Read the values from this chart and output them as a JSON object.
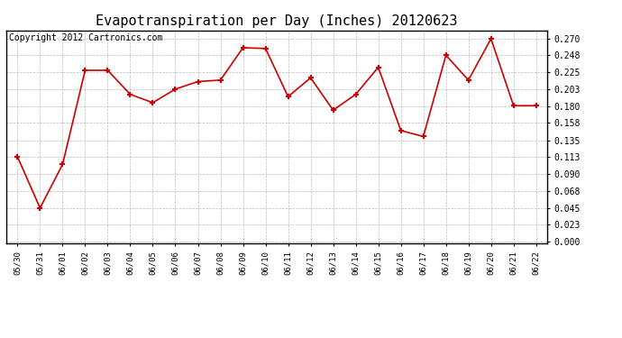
{
  "title": "Evapotranspiration per Day (Inches) 20120623",
  "copyright": "Copyright 2012 Cartronics.com",
  "dates": [
    "05/30",
    "05/31",
    "06/01",
    "06/02",
    "06/03",
    "06/04",
    "06/05",
    "06/06",
    "06/07",
    "06/08",
    "06/09",
    "06/10",
    "06/11",
    "06/12",
    "06/13",
    "06/14",
    "06/15",
    "06/16",
    "06/17",
    "06/18",
    "06/19",
    "06/20",
    "06/21",
    "06/22"
  ],
  "values": [
    0.113,
    0.045,
    0.103,
    0.228,
    0.228,
    0.196,
    0.185,
    0.203,
    0.213,
    0.215,
    0.258,
    0.257,
    0.193,
    0.218,
    0.175,
    0.196,
    0.232,
    0.148,
    0.14,
    0.248,
    0.215,
    0.27,
    0.181,
    0.181
  ],
  "line_color": "#CC0000",
  "marker": "+",
  "marker_size": 5,
  "background_color": "#FFFFFF",
  "grid_color": "#AAAAAA",
  "yticks": [
    0.0,
    0.023,
    0.045,
    0.068,
    0.09,
    0.113,
    0.135,
    0.158,
    0.18,
    0.203,
    0.225,
    0.248,
    0.27
  ],
  "ylim": [
    -0.002,
    0.281
  ],
  "title_fontsize": 11,
  "copyright_fontsize": 7
}
